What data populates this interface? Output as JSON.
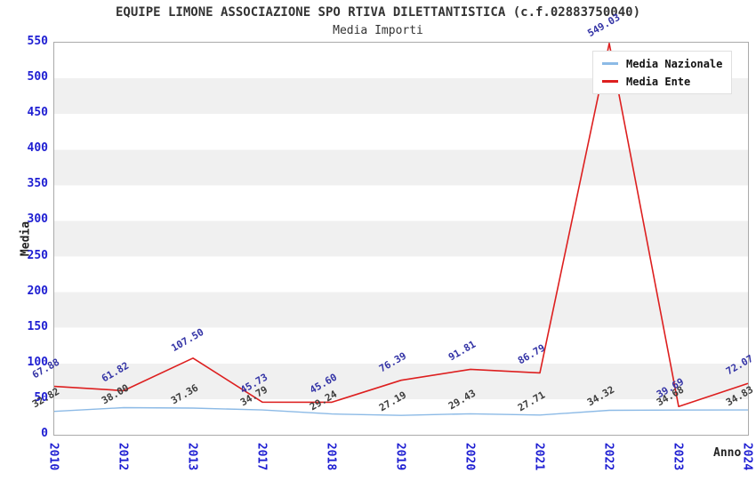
{
  "colors": {
    "axis_tick": "#1e1ed2",
    "title": "#333333",
    "band": "#f0f0f0",
    "plot_border": "#aaaaaa",
    "media_nazionale_line": "#8cbae6",
    "media_ente_line": "#dd1f1f",
    "ente_label_text": "#3434a6",
    "nazionale_label_text": "#3d3d3d"
  },
  "chart_data": {
    "type": "line",
    "title": "EQUIPE LIMONE ASSOCIAZIONE SPO RTIVA DILETTANTISTICA (c.f.02883750040)",
    "subtitle": "Media Importi",
    "xlabel": "Anno",
    "ylabel": "Media",
    "x": [
      "2010",
      "2012",
      "2013",
      "2017",
      "2018",
      "2019",
      "2020",
      "2021",
      "2022",
      "2023",
      "2024"
    ],
    "ylim": [
      0,
      550
    ],
    "y_ticks": [
      0,
      50,
      100,
      150,
      200,
      250,
      300,
      350,
      400,
      450,
      500,
      550
    ],
    "grid_bands": true,
    "legend_position": "top-right",
    "series": [
      {
        "name": "Media Nazionale",
        "color": "#8cbae6",
        "label_color": "#3d3d3d",
        "values": [
          32.82,
          38.0,
          37.36,
          34.79,
          29.24,
          27.19,
          29.43,
          27.71,
          34.32,
          34.68,
          34.83
        ]
      },
      {
        "name": "Media Ente",
        "color": "#dd1f1f",
        "label_color": "#3434a6",
        "values": [
          67.88,
          61.82,
          107.5,
          45.73,
          45.6,
          76.39,
          91.81,
          86.79,
          549.03,
          39.69,
          72.07
        ]
      }
    ]
  }
}
